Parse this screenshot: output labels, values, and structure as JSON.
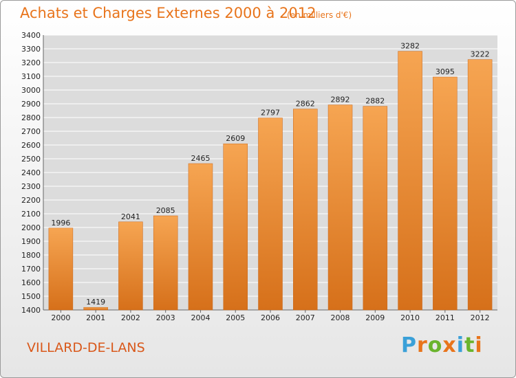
{
  "title": "Achats et Charges Externes 2000 à 2012",
  "unit_note": "(en milliers d'€)",
  "commune": "VILLARD-DE-LANS",
  "brand": {
    "letters": [
      "P",
      "r",
      "o",
      "x",
      "i",
      "t",
      "i"
    ],
    "colors": [
      "#3aa0d8",
      "#e8741b",
      "#6ab42d",
      "#e8741b",
      "#3aa0d8",
      "#6ab42d",
      "#e8741b"
    ]
  },
  "colors": {
    "bar_light": "#f6a552",
    "bar_dark": "#d6701a",
    "title": "#e8741b",
    "grid": "#ffffff",
    "plot_bg": "#dcdcdc"
  },
  "chart_data": {
    "type": "bar",
    "title": "Achats et Charges Externes 2000 à 2012",
    "xlabel": "",
    "ylabel": "",
    "categories": [
      "2000",
      "2001",
      "2002",
      "2003",
      "2004",
      "2005",
      "2006",
      "2007",
      "2008",
      "2009",
      "2010",
      "2011",
      "2012"
    ],
    "values": [
      1996,
      1419,
      2041,
      2085,
      2465,
      2609,
      2797,
      2862,
      2892,
      2882,
      3282,
      3095,
      3222
    ],
    "ylim": [
      1400,
      3400
    ],
    "yticks": [
      1400,
      1500,
      1600,
      1700,
      1800,
      1900,
      2000,
      2100,
      2200,
      2300,
      2400,
      2500,
      2600,
      2700,
      2800,
      2900,
      3000,
      3100,
      3200,
      3300,
      3400
    ],
    "grid": true,
    "legend": "none"
  }
}
